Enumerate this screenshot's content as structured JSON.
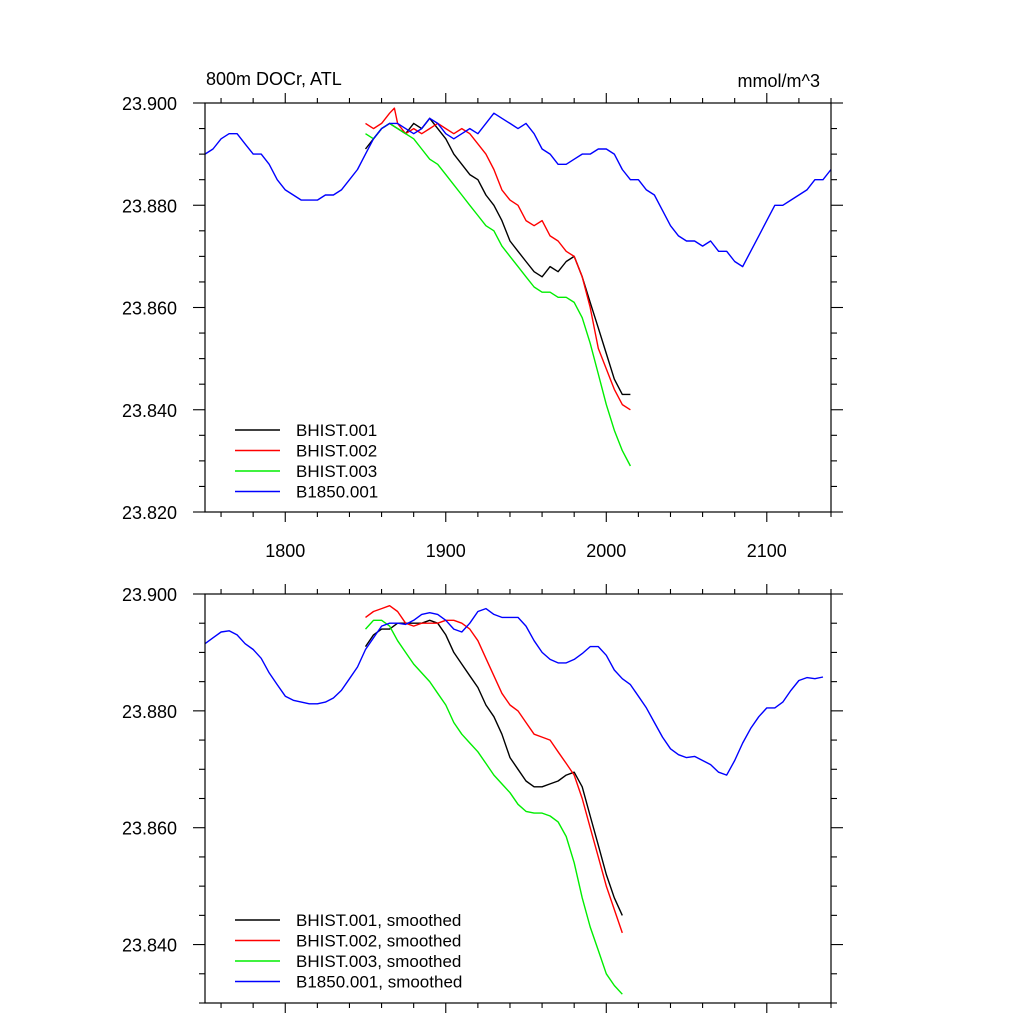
{
  "chart_data": [
    {
      "type": "line",
      "title": "800m DOCr, ATL",
      "units": "mmol/m^3",
      "xlim": [
        1750,
        2140
      ],
      "ylim": [
        23.82,
        23.9
      ],
      "xticks": [
        1800,
        1900,
        2000,
        2100
      ],
      "xtick_labels": [
        "1800",
        "1900",
        "2000",
        "2100"
      ],
      "yticks": [
        23.82,
        23.84,
        23.86,
        23.88,
        23.9
      ],
      "ytick_labels": [
        "23.820",
        "23.840",
        "23.860",
        "23.880",
        "23.900"
      ],
      "grid": false,
      "legend_position": "bottom-left",
      "series": [
        {
          "name": "BHIST.001",
          "color": "#000000",
          "x": [
            1850,
            1855,
            1860,
            1865,
            1870,
            1875,
            1880,
            1885,
            1890,
            1895,
            1900,
            1905,
            1910,
            1915,
            1920,
            1925,
            1930,
            1935,
            1940,
            1945,
            1950,
            1955,
            1960,
            1965,
            1970,
            1975,
            1980,
            1985,
            1990,
            1995,
            2000,
            2005,
            2010,
            2015
          ],
          "y": [
            23.891,
            23.893,
            23.895,
            23.896,
            23.895,
            23.894,
            23.896,
            23.895,
            23.897,
            23.895,
            23.893,
            23.89,
            23.888,
            23.886,
            23.885,
            23.882,
            23.88,
            23.877,
            23.873,
            23.871,
            23.869,
            23.867,
            23.866,
            23.868,
            23.867,
            23.869,
            23.87,
            23.866,
            23.861,
            23.856,
            23.851,
            23.846,
            23.843,
            23.843
          ]
        },
        {
          "name": "BHIST.002",
          "color": "#ff0000",
          "x": [
            1850,
            1855,
            1860,
            1865,
            1868,
            1870,
            1875,
            1880,
            1885,
            1890,
            1895,
            1900,
            1905,
            1910,
            1915,
            1920,
            1925,
            1930,
            1935,
            1940,
            1945,
            1950,
            1955,
            1960,
            1965,
            1970,
            1975,
            1980,
            1985,
            1990,
            1995,
            2000,
            2005,
            2010,
            2015
          ],
          "y": [
            23.896,
            23.895,
            23.896,
            23.898,
            23.899,
            23.896,
            23.894,
            23.895,
            23.894,
            23.895,
            23.896,
            23.895,
            23.894,
            23.895,
            23.894,
            23.892,
            23.89,
            23.887,
            23.883,
            23.881,
            23.88,
            23.877,
            23.876,
            23.877,
            23.874,
            23.873,
            23.871,
            23.87,
            23.866,
            23.86,
            23.852,
            23.848,
            23.844,
            23.841,
            23.84
          ]
        },
        {
          "name": "BHIST.003",
          "color": "#00ee00",
          "x": [
            1850,
            1855,
            1860,
            1865,
            1870,
            1875,
            1880,
            1885,
            1890,
            1895,
            1900,
            1905,
            1910,
            1915,
            1920,
            1925,
            1930,
            1935,
            1940,
            1945,
            1950,
            1955,
            1960,
            1965,
            1970,
            1975,
            1980,
            1985,
            1990,
            1995,
            2000,
            2005,
            2010,
            2015
          ],
          "y": [
            23.894,
            23.893,
            23.895,
            23.896,
            23.895,
            23.894,
            23.893,
            23.891,
            23.889,
            23.888,
            23.886,
            23.884,
            23.882,
            23.88,
            23.878,
            23.876,
            23.875,
            23.872,
            23.87,
            23.868,
            23.866,
            23.864,
            23.863,
            23.863,
            23.862,
            23.862,
            23.861,
            23.858,
            23.853,
            23.847,
            23.841,
            23.836,
            23.832,
            23.829
          ]
        },
        {
          "name": "B1850.001",
          "color": "#0000ff",
          "x": [
            1750,
            1755,
            1760,
            1765,
            1770,
            1775,
            1780,
            1785,
            1790,
            1795,
            1800,
            1805,
            1810,
            1815,
            1820,
            1825,
            1830,
            1835,
            1840,
            1845,
            1850,
            1855,
            1860,
            1865,
            1870,
            1875,
            1880,
            1885,
            1890,
            1895,
            1900,
            1905,
            1910,
            1915,
            1920,
            1925,
            1930,
            1935,
            1940,
            1945,
            1950,
            1955,
            1960,
            1965,
            1970,
            1975,
            1980,
            1985,
            1990,
            1995,
            2000,
            2005,
            2010,
            2015,
            2020,
            2025,
            2030,
            2035,
            2040,
            2045,
            2050,
            2055,
            2060,
            2065,
            2070,
            2075,
            2080,
            2085,
            2090,
            2095,
            2100,
            2105,
            2110,
            2115,
            2120,
            2125,
            2130,
            2135,
            2140
          ],
          "y": [
            23.89,
            23.891,
            23.893,
            23.894,
            23.894,
            23.892,
            23.89,
            23.89,
            23.888,
            23.885,
            23.883,
            23.882,
            23.881,
            23.881,
            23.881,
            23.882,
            23.882,
            23.883,
            23.885,
            23.887,
            23.89,
            23.893,
            23.895,
            23.896,
            23.896,
            23.895,
            23.894,
            23.895,
            23.897,
            23.896,
            23.894,
            23.893,
            23.894,
            23.895,
            23.894,
            23.896,
            23.898,
            23.897,
            23.896,
            23.895,
            23.896,
            23.894,
            23.891,
            23.89,
            23.888,
            23.888,
            23.889,
            23.89,
            23.89,
            23.891,
            23.891,
            23.89,
            23.887,
            23.885,
            23.885,
            23.883,
            23.882,
            23.879,
            23.876,
            23.874,
            23.873,
            23.873,
            23.872,
            23.873,
            23.871,
            23.871,
            23.869,
            23.868,
            23.871,
            23.874,
            23.877,
            23.88,
            23.88,
            23.881,
            23.882,
            23.883,
            23.885,
            23.885,
            23.887
          ]
        }
      ]
    },
    {
      "type": "line",
      "xlim": [
        1750,
        2140
      ],
      "ylim": [
        23.83,
        23.9
      ],
      "xticks": [
        1800,
        1900,
        2000,
        2100
      ],
      "yticks": [
        23.84,
        23.86,
        23.88,
        23.9
      ],
      "ytick_labels": [
        "23.840",
        "23.860",
        "23.880",
        "23.900"
      ],
      "grid": false,
      "legend_position": "bottom-left",
      "series": [
        {
          "name": "BHIST.001, smoothed",
          "color": "#000000",
          "x": [
            1850,
            1855,
            1860,
            1865,
            1870,
            1875,
            1880,
            1885,
            1890,
            1895,
            1900,
            1905,
            1910,
            1915,
            1920,
            1925,
            1930,
            1935,
            1940,
            1945,
            1950,
            1955,
            1960,
            1965,
            1970,
            1975,
            1980,
            1985,
            1990,
            1995,
            2000,
            2005,
            2010
          ],
          "y": [
            23.891,
            23.893,
            23.894,
            23.894,
            23.895,
            23.895,
            23.895,
            23.895,
            23.8955,
            23.895,
            23.893,
            23.89,
            23.888,
            23.886,
            23.884,
            23.881,
            23.879,
            23.876,
            23.872,
            23.87,
            23.868,
            23.867,
            23.867,
            23.8675,
            23.868,
            23.869,
            23.8695,
            23.867,
            23.862,
            23.857,
            23.852,
            23.848,
            23.845
          ]
        },
        {
          "name": "BHIST.002, smoothed",
          "color": "#ff0000",
          "x": [
            1850,
            1855,
            1860,
            1865,
            1870,
            1875,
            1880,
            1885,
            1890,
            1895,
            1900,
            1905,
            1910,
            1915,
            1920,
            1925,
            1930,
            1935,
            1940,
            1945,
            1950,
            1955,
            1960,
            1965,
            1970,
            1975,
            1980,
            1985,
            1990,
            1995,
            2000,
            2005,
            2010
          ],
          "y": [
            23.896,
            23.897,
            23.8975,
            23.898,
            23.897,
            23.895,
            23.8945,
            23.895,
            23.895,
            23.895,
            23.8955,
            23.8955,
            23.895,
            23.894,
            23.892,
            23.889,
            23.886,
            23.883,
            23.881,
            23.88,
            23.878,
            23.876,
            23.8755,
            23.875,
            23.873,
            23.871,
            23.869,
            23.865,
            23.86,
            23.855,
            23.85,
            23.846,
            23.842
          ]
        },
        {
          "name": "BHIST.003, smoothed",
          "color": "#00ee00",
          "x": [
            1850,
            1855,
            1860,
            1865,
            1870,
            1875,
            1880,
            1885,
            1890,
            1895,
            1900,
            1905,
            1910,
            1915,
            1920,
            1925,
            1930,
            1935,
            1940,
            1945,
            1950,
            1955,
            1960,
            1965,
            1970,
            1975,
            1980,
            1985,
            1990,
            1995,
            2000,
            2005,
            2010
          ],
          "y": [
            23.894,
            23.8955,
            23.8955,
            23.8945,
            23.892,
            23.89,
            23.888,
            23.8865,
            23.885,
            23.883,
            23.881,
            23.878,
            23.876,
            23.8745,
            23.873,
            23.871,
            23.869,
            23.8675,
            23.866,
            23.864,
            23.8628,
            23.8625,
            23.8625,
            23.862,
            23.861,
            23.8585,
            23.854,
            23.848,
            23.843,
            23.839,
            23.835,
            23.833,
            23.8315
          ]
        },
        {
          "name": "B1850.001, smoothed",
          "color": "#0000ff",
          "x": [
            1750,
            1755,
            1760,
            1765,
            1770,
            1775,
            1780,
            1785,
            1790,
            1795,
            1800,
            1805,
            1810,
            1815,
            1820,
            1825,
            1830,
            1835,
            1840,
            1845,
            1850,
            1855,
            1860,
            1865,
            1870,
            1875,
            1880,
            1885,
            1890,
            1895,
            1900,
            1905,
            1910,
            1915,
            1920,
            1925,
            1930,
            1935,
            1940,
            1945,
            1950,
            1955,
            1960,
            1965,
            1970,
            1975,
            1980,
            1985,
            1990,
            1995,
            2000,
            2005,
            2010,
            2015,
            2020,
            2025,
            2030,
            2035,
            2040,
            2045,
            2050,
            2055,
            2060,
            2065,
            2070,
            2075,
            2080,
            2085,
            2090,
            2095,
            2100,
            2105,
            2110,
            2115,
            2120,
            2125,
            2130,
            2135
          ],
          "y": [
            23.8915,
            23.8925,
            23.8935,
            23.8937,
            23.893,
            23.8915,
            23.8905,
            23.889,
            23.8865,
            23.8845,
            23.8825,
            23.8818,
            23.8815,
            23.8812,
            23.8812,
            23.8815,
            23.8822,
            23.8835,
            23.8855,
            23.8875,
            23.8905,
            23.8925,
            23.8945,
            23.895,
            23.895,
            23.8948,
            23.8955,
            23.8965,
            23.8968,
            23.8965,
            23.8955,
            23.894,
            23.8935,
            23.895,
            23.897,
            23.8975,
            23.8965,
            23.896,
            23.896,
            23.896,
            23.8945,
            23.892,
            23.89,
            23.8888,
            23.8882,
            23.8882,
            23.8888,
            23.8898,
            23.891,
            23.891,
            23.8895,
            23.887,
            23.8855,
            23.8845,
            23.8825,
            23.8805,
            23.878,
            23.8755,
            23.8735,
            23.8725,
            23.872,
            23.8722,
            23.8715,
            23.8708,
            23.8695,
            23.869,
            23.8715,
            23.8745,
            23.877,
            23.879,
            23.8805,
            23.8805,
            23.8815,
            23.8835,
            23.8852,
            23.8857,
            23.8855,
            23.8858
          ]
        }
      ]
    }
  ]
}
